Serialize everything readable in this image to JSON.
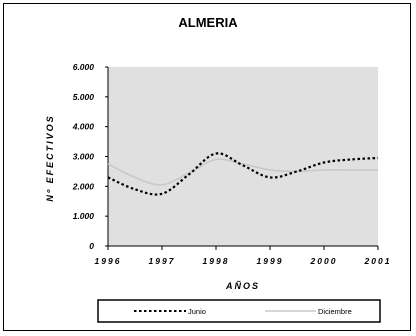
{
  "chart_data": {
    "type": "line",
    "title": "ALMERIA",
    "xlabel": "AÑOS",
    "ylabel": "Nº EFECTIVOS",
    "xlim": [
      1996,
      2001
    ],
    "ylim": [
      0,
      6000
    ],
    "x_ticks": [
      "1996",
      "1997",
      "1998",
      "1999",
      "2000",
      "2001"
    ],
    "y_ticks": [
      "0",
      "1.000",
      "2.000",
      "3.000",
      "4.000",
      "5.000",
      "6.000"
    ],
    "grid": false,
    "legend_position": "bottom",
    "series": [
      {
        "name": "Junio",
        "style": "dotted",
        "color": "#000000",
        "x": [
          1996,
          1996.5,
          1997,
          1997.5,
          1998,
          1998.5,
          1999,
          1999.5,
          2000,
          2000.5,
          2001
        ],
        "y": [
          2300,
          1900,
          1750,
          2400,
          3100,
          2700,
          2300,
          2500,
          2800,
          2900,
          2950
        ]
      },
      {
        "name": "Diciembre",
        "style": "solid",
        "color": "#c8c8c8",
        "x": [
          1996,
          1996.5,
          1997,
          1997.5,
          1998,
          1998.5,
          1999,
          1999.5,
          2000,
          2000.5,
          2001
        ],
        "y": [
          2750,
          2300,
          2050,
          2450,
          2900,
          2750,
          2550,
          2500,
          2550,
          2550,
          2550
        ]
      }
    ]
  }
}
